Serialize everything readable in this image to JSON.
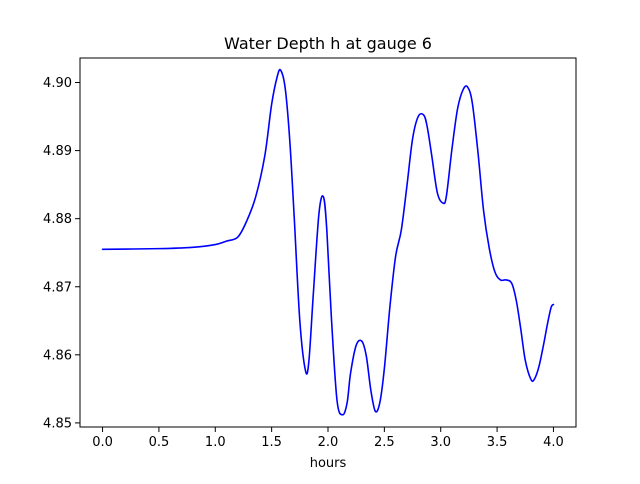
{
  "chart_data": {
    "type": "line",
    "title": "Water Depth h at gauge 6",
    "xlabel": "hours",
    "ylabel": "",
    "xlim": [
      -0.2,
      4.2
    ],
    "ylim": [
      4.8494,
      4.9036
    ],
    "xticks": [
      0.0,
      0.5,
      1.0,
      1.5,
      2.0,
      2.5,
      3.0,
      3.5,
      4.0
    ],
    "xtick_labels": [
      "0.0",
      "0.5",
      "1.0",
      "1.5",
      "2.0",
      "2.5",
      "3.0",
      "3.5",
      "4.0"
    ],
    "yticks": [
      4.85,
      4.86,
      4.87,
      4.88,
      4.89,
      4.9
    ],
    "ytick_labels": [
      "4.85",
      "4.86",
      "4.87",
      "4.88",
      "4.89",
      "4.90"
    ],
    "grid": false,
    "series": [
      {
        "color": "#0000ff",
        "x": [
          0.0,
          0.5,
          0.8,
          1.0,
          1.1,
          1.2,
          1.28,
          1.36,
          1.44,
          1.5,
          1.55,
          1.58,
          1.62,
          1.66,
          1.7,
          1.75,
          1.8,
          1.83,
          1.87,
          1.92,
          1.96,
          1.99,
          2.03,
          2.08,
          2.13,
          2.17,
          2.2,
          2.25,
          2.3,
          2.34,
          2.38,
          2.42,
          2.46,
          2.5,
          2.55,
          2.6,
          2.65,
          2.7,
          2.75,
          2.8,
          2.85,
          2.88,
          2.92,
          2.97,
          3.02,
          3.05,
          3.1,
          3.15,
          3.2,
          3.24,
          3.28,
          3.33,
          3.38,
          3.43,
          3.48,
          3.53,
          3.58,
          3.63,
          3.67,
          3.71,
          3.75,
          3.8,
          3.83,
          3.87,
          3.91,
          3.95,
          3.98,
          4.0
        ],
        "y": [
          4.8755,
          4.8756,
          4.8758,
          4.8762,
          4.8767,
          4.8773,
          4.8797,
          4.8833,
          4.8893,
          4.8968,
          4.9009,
          4.9018,
          4.8992,
          4.8917,
          4.8803,
          4.865,
          4.8577,
          4.859,
          4.869,
          4.8808,
          4.8832,
          4.8782,
          4.8655,
          4.8533,
          4.8512,
          4.853,
          4.8573,
          4.8614,
          4.862,
          4.8598,
          4.8548,
          4.8517,
          4.853,
          4.858,
          4.8672,
          4.8745,
          4.8783,
          4.8848,
          4.8917,
          4.895,
          4.8952,
          4.8935,
          4.8893,
          4.8838,
          4.8823,
          4.8833,
          4.8903,
          4.8962,
          4.899,
          4.8993,
          4.897,
          4.8898,
          4.8812,
          4.8757,
          4.8722,
          4.871,
          4.871,
          4.8705,
          4.868,
          4.8638,
          4.8592,
          4.8564,
          4.8564,
          4.8582,
          4.8613,
          4.8648,
          4.867,
          4.8674
        ]
      }
    ]
  }
}
